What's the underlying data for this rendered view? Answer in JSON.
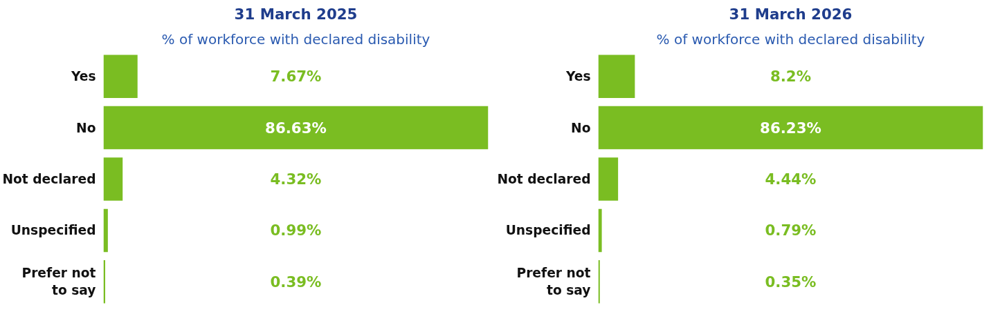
{
  "chart_data": [
    {
      "type": "bar",
      "orientation": "horizontal",
      "title": "31 March 2025",
      "subtitle": "% of workforce with declared disability",
      "categories": [
        "Yes",
        "No",
        "Not declared",
        "Unspecified",
        "Prefer not to say"
      ],
      "values": [
        7.67,
        86.63,
        4.32,
        0.99,
        0.39
      ],
      "color": "#7abd22",
      "value_labels": [
        "7.67%",
        "86.63%",
        "4.32%",
        "0.99%",
        "0.39%"
      ]
    },
    {
      "type": "bar",
      "orientation": "horizontal",
      "title": "31 March 2026",
      "subtitle": "% of workforce with declared disability",
      "categories": [
        "Yes",
        "No",
        "Not declared",
        "Unspecified",
        "Prefer not to say"
      ],
      "values": [
        8.2,
        86.23,
        4.44,
        0.79,
        0.35
      ],
      "color": "#7abd22",
      "value_labels": [
        "8.2%",
        "86.23%",
        "4.44%",
        "0.79%",
        "0.35%"
      ]
    }
  ]
}
